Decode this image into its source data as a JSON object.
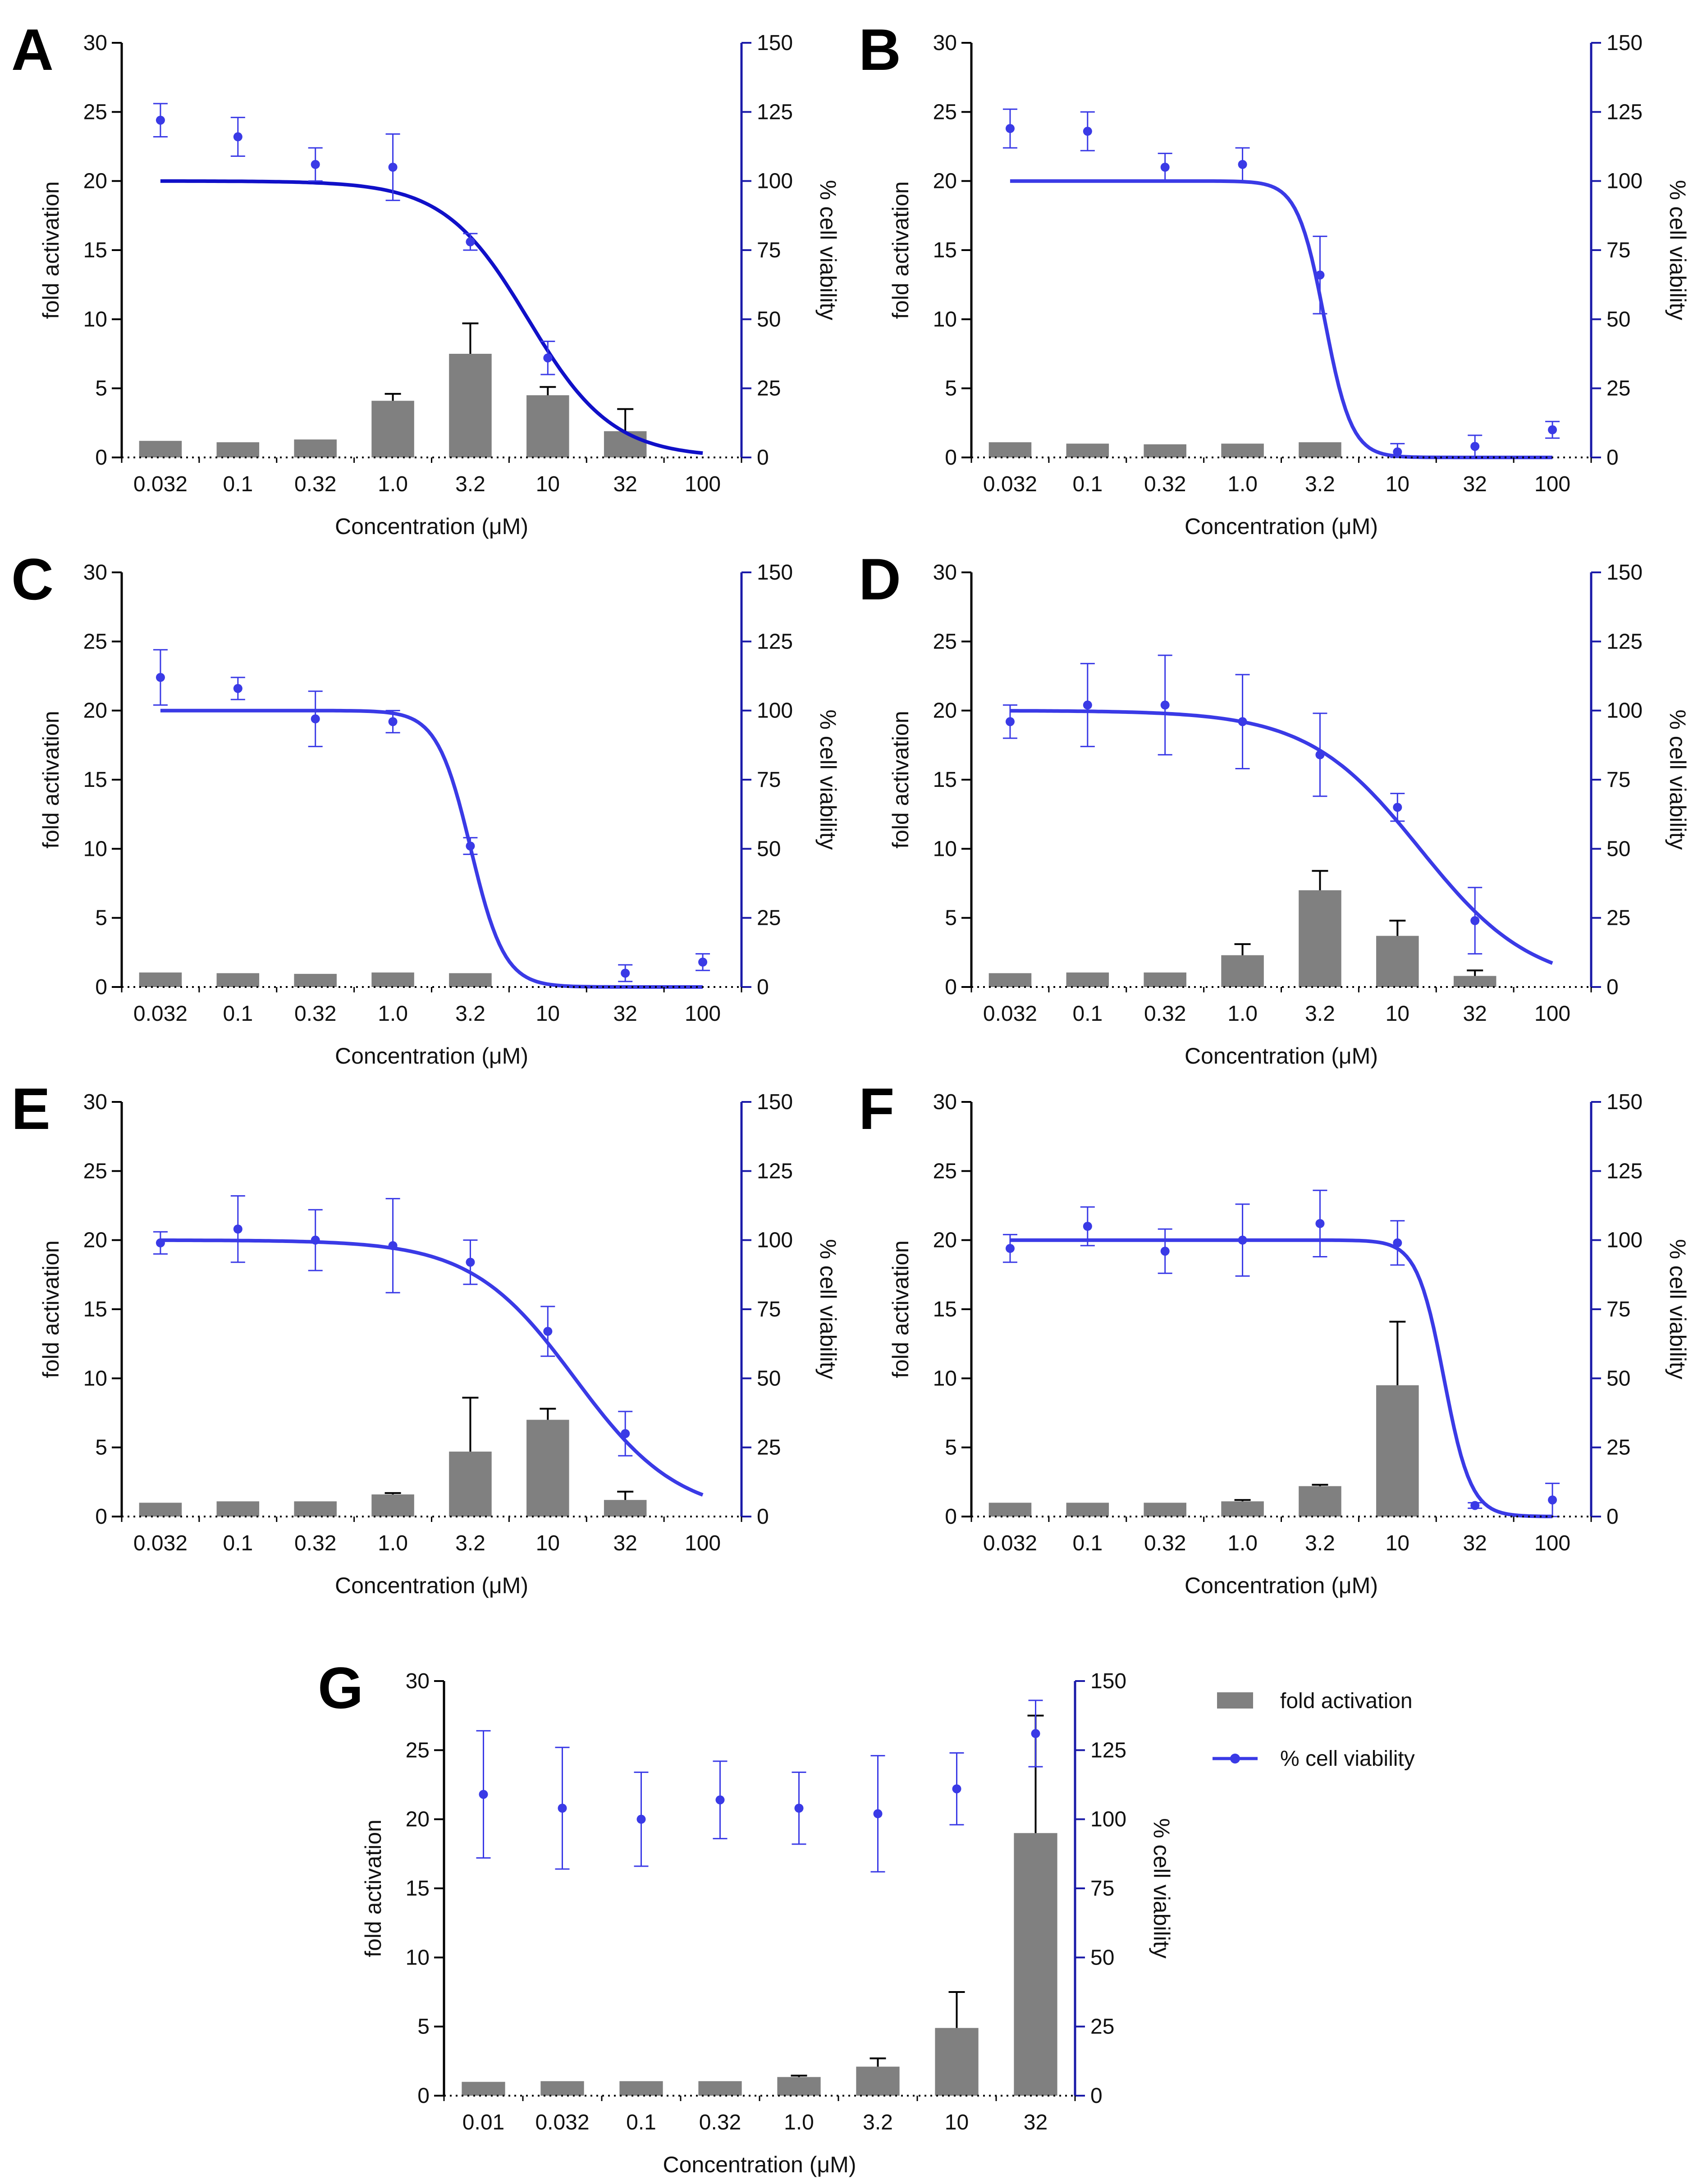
{
  "figure": {
    "legend": {
      "bar_label": "fold activation",
      "line_label": "% cell viability"
    }
  },
  "colors": {
    "bar": "#808080",
    "bar_error": "#000000",
    "line": "#3a3ae6",
    "line_dark": "#1010c8",
    "axis_left": "#000000",
    "axis_right": "#1a1aa8"
  },
  "chart_data": [
    {
      "panel": "A",
      "type": "bar+scatter",
      "categories": [
        "0.032",
        "0.1",
        "0.32",
        "1.0",
        "3.2",
        "10",
        "32",
        "100"
      ],
      "x_values": [
        0.032,
        0.1,
        0.32,
        1.0,
        3.2,
        10,
        32,
        100
      ],
      "xlabel": "Concentration (μM)",
      "ylabel": "fold activation",
      "y2label": "% cell viability",
      "ylim": [
        0,
        30
      ],
      "y2lim": [
        0,
        150
      ],
      "yticks": [
        "0",
        "5",
        "10",
        "15",
        "20",
        "25",
        "30"
      ],
      "y2ticks": [
        "0",
        "25",
        "50",
        "75",
        "100",
        "125",
        "150"
      ],
      "bars": {
        "name": "fold activation",
        "values": [
          1.2,
          1.1,
          1.3,
          4.1,
          7.5,
          4.5,
          1.9,
          null
        ],
        "errors": [
          0.05,
          0.05,
          0.05,
          0.5,
          2.2,
          0.6,
          1.6,
          null
        ]
      },
      "points": {
        "name": "% cell viability",
        "values": [
          122,
          116,
          106,
          105,
          78,
          36,
          null,
          null
        ],
        "errors": [
          6,
          7,
          6,
          12,
          3,
          6,
          null,
          null
        ]
      },
      "fit": {
        "top": 100,
        "bottom": 0,
        "ic50": 7.5,
        "hill": 1.6
      }
    },
    {
      "panel": "B",
      "type": "bar+scatter",
      "categories": [
        "0.032",
        "0.1",
        "0.32",
        "1.0",
        "3.2",
        "10",
        "32",
        "100"
      ],
      "x_values": [
        0.032,
        0.1,
        0.32,
        1.0,
        3.2,
        10,
        32,
        100
      ],
      "xlabel": "Concentration (μM)",
      "ylabel": "fold activation",
      "y2label": "% cell viability",
      "ylim": [
        0,
        30
      ],
      "y2lim": [
        0,
        150
      ],
      "yticks": [
        "0",
        "5",
        "10",
        "15",
        "20",
        "25",
        "30"
      ],
      "y2ticks": [
        "0",
        "25",
        "50",
        "75",
        "100",
        "125",
        "150"
      ],
      "bars": {
        "name": "fold activation",
        "values": [
          1.1,
          1.0,
          0.95,
          1.0,
          1.1,
          null,
          null,
          null
        ],
        "errors": [
          0.05,
          0.05,
          0.05,
          0.05,
          0.05,
          null,
          null,
          null
        ]
      },
      "points": {
        "name": "% cell viability",
        "values": [
          119,
          118,
          105,
          106,
          66,
          2,
          4,
          10
        ],
        "errors": [
          7,
          7,
          5,
          6,
          14,
          3,
          4,
          3
        ]
      },
      "fit": {
        "top": 100,
        "bottom": 0,
        "ic50": 3.4,
        "hill": 5
      }
    },
    {
      "panel": "C",
      "type": "bar+scatter",
      "categories": [
        "0.032",
        "0.1",
        "0.32",
        "1.0",
        "3.2",
        "10",
        "32",
        "100"
      ],
      "x_values": [
        0.032,
        0.1,
        0.32,
        1.0,
        3.2,
        10,
        32,
        100
      ],
      "xlabel": "Concentration (μM)",
      "ylabel": "fold activation",
      "y2label": "% cell viability",
      "ylim": [
        0,
        30
      ],
      "y2lim": [
        0,
        150
      ],
      "yticks": [
        "0",
        "5",
        "10",
        "15",
        "20",
        "25",
        "30"
      ],
      "y2ticks": [
        "0",
        "25",
        "50",
        "75",
        "100",
        "125",
        "150"
      ],
      "bars": {
        "name": "fold activation",
        "values": [
          1.05,
          1.0,
          0.95,
          1.05,
          1.0,
          null,
          null,
          null
        ],
        "errors": [
          0.05,
          0.05,
          0.05,
          0.05,
          0.05,
          null,
          null,
          null
        ]
      },
      "points": {
        "name": "% cell viability",
        "values": [
          112,
          108,
          97,
          96,
          51,
          null,
          5,
          9
        ],
        "errors": [
          10,
          4,
          10,
          4,
          3,
          null,
          3,
          3
        ]
      },
      "fit": {
        "top": 100,
        "bottom": 0,
        "ic50": 3.2,
        "hill": 4
      }
    },
    {
      "panel": "D",
      "type": "bar+scatter",
      "categories": [
        "0.032",
        "0.1",
        "0.32",
        "1.0",
        "3.2",
        "10",
        "32",
        "100"
      ],
      "x_values": [
        0.032,
        0.1,
        0.32,
        1.0,
        3.2,
        10,
        32,
        100
      ],
      "xlabel": "Concentration (μM)",
      "ylabel": "fold activation",
      "y2label": "% cell viability",
      "ylim": [
        0,
        30
      ],
      "y2lim": [
        0,
        150
      ],
      "yticks": [
        "0",
        "5",
        "10",
        "15",
        "20",
        "25",
        "30"
      ],
      "y2ticks": [
        "0",
        "25",
        "50",
        "75",
        "100",
        "125",
        "150"
      ],
      "bars": {
        "name": "fold activation",
        "values": [
          1.0,
          1.05,
          1.05,
          2.3,
          7.0,
          3.7,
          0.8,
          null
        ],
        "errors": [
          0.05,
          0.05,
          0.05,
          0.8,
          1.4,
          1.1,
          0.4,
          null
        ]
      },
      "points": {
        "name": "% cell viability",
        "values": [
          96,
          102,
          102,
          96,
          84,
          65,
          24,
          null
        ],
        "errors": [
          6,
          15,
          18,
          17,
          15,
          5,
          12,
          null
        ]
      },
      "fit": {
        "top": 100,
        "bottom": 0,
        "ic50": 14,
        "hill": 1.2
      }
    },
    {
      "panel": "E",
      "type": "bar+scatter",
      "categories": [
        "0.032",
        "0.1",
        "0.32",
        "1.0",
        "3.2",
        "10",
        "32",
        "100"
      ],
      "x_values": [
        0.032,
        0.1,
        0.32,
        1.0,
        3.2,
        10,
        32,
        100
      ],
      "xlabel": "Concentration (μM)",
      "ylabel": "fold activation",
      "y2label": "% cell viability",
      "ylim": [
        0,
        30
      ],
      "y2lim": [
        0,
        150
      ],
      "yticks": [
        "0",
        "5",
        "10",
        "15",
        "20",
        "25",
        "30"
      ],
      "y2ticks": [
        "0",
        "25",
        "50",
        "75",
        "100",
        "125",
        "150"
      ],
      "bars": {
        "name": "fold activation",
        "values": [
          1.0,
          1.1,
          1.1,
          1.6,
          4.7,
          7.0,
          1.2,
          null
        ],
        "errors": [
          0.05,
          0.05,
          0.05,
          0.1,
          3.9,
          0.8,
          0.6,
          null
        ]
      },
      "points": {
        "name": "% cell viability",
        "values": [
          99,
          104,
          100,
          98,
          92,
          67,
          30,
          null
        ],
        "errors": [
          4,
          12,
          11,
          17,
          8,
          9,
          8,
          null
        ]
      },
      "fit": {
        "top": 100,
        "bottom": 0,
        "ic50": 15,
        "hill": 1.3
      }
    },
    {
      "panel": "F",
      "type": "bar+scatter",
      "categories": [
        "0.032",
        "0.1",
        "0.32",
        "1.0",
        "3.2",
        "10",
        "32",
        "100"
      ],
      "x_values": [
        0.032,
        0.1,
        0.32,
        1.0,
        3.2,
        10,
        32,
        100
      ],
      "xlabel": "Concentration (μM)",
      "ylabel": "fold activation",
      "y2label": "% cell viability",
      "ylim": [
        0,
        30
      ],
      "y2lim": [
        0,
        150
      ],
      "yticks": [
        "0",
        "5",
        "10",
        "15",
        "20",
        "25",
        "30"
      ],
      "y2ticks": [
        "0",
        "25",
        "50",
        "75",
        "100",
        "125",
        "150"
      ],
      "bars": {
        "name": "fold activation",
        "values": [
          1.0,
          1.0,
          1.0,
          1.1,
          2.2,
          9.5,
          null,
          null
        ],
        "errors": [
          0.05,
          0.05,
          0.05,
          0.1,
          0.1,
          4.6,
          null,
          null
        ]
      },
      "points": {
        "name": "% cell viability",
        "values": [
          97,
          105,
          96,
          100,
          106,
          99,
          4,
          6
        ],
        "errors": [
          5,
          7,
          8,
          13,
          12,
          8,
          1,
          6
        ]
      },
      "fit": {
        "top": 100,
        "bottom": 0,
        "ic50": 20,
        "hill": 5
      }
    },
    {
      "panel": "G",
      "type": "bar+scatter",
      "categories": [
        "0.01",
        "0.032",
        "0.1",
        "0.32",
        "1.0",
        "3.2",
        "10",
        "32"
      ],
      "x_values": [
        0.01,
        0.032,
        0.1,
        0.32,
        1.0,
        3.2,
        10,
        32
      ],
      "xlabel": "Concentration (μM)",
      "ylabel": "fold activation",
      "y2label": "% cell viability",
      "ylim": [
        0,
        30
      ],
      "y2lim": [
        0,
        150
      ],
      "yticks": [
        "0",
        "5",
        "10",
        "15",
        "20",
        "25",
        "30"
      ],
      "y2ticks": [
        "0",
        "25",
        "50",
        "75",
        "100",
        "125",
        "150"
      ],
      "bars": {
        "name": "fold activation",
        "values": [
          1.0,
          1.05,
          1.05,
          1.05,
          1.35,
          2.1,
          4.9,
          19.0
        ],
        "errors": [
          0.05,
          0.05,
          0.05,
          0.05,
          0.1,
          0.6,
          2.6,
          8.5
        ]
      },
      "points": {
        "name": "% cell viability",
        "values": [
          109,
          104,
          100,
          107,
          104,
          102,
          111,
          131
        ],
        "errors": [
          23,
          22,
          17,
          14,
          13,
          21,
          13,
          12
        ]
      },
      "fit": null
    }
  ]
}
